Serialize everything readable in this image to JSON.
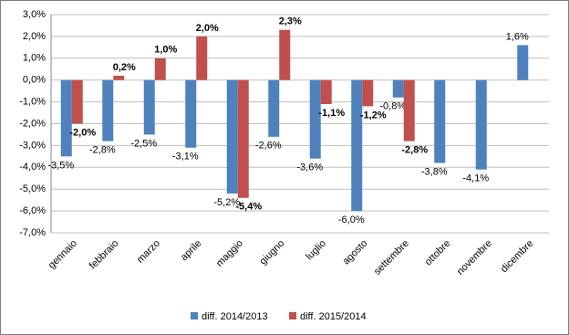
{
  "chart_data": {
    "type": "bar",
    "categories": [
      "gennaio",
      "febbraio",
      "marzo",
      "aprile",
      "maggio",
      "giugno",
      "luglio",
      "agosto",
      "settembre",
      "ottobre",
      "novembre",
      "dicembre"
    ],
    "series": [
      {
        "name": "diff. 2014/2013",
        "color": "#4f81bd",
        "values": [
          -3.5,
          -2.8,
          -2.5,
          -3.1,
          -5.2,
          -2.6,
          -3.6,
          -6.0,
          -0.8,
          -3.8,
          -4.1,
          1.6
        ],
        "value_labels": [
          "-3,5%",
          "-2,8%",
          "-2,5%",
          "-3,1%",
          "-5,2%",
          "-2,6%",
          "-3,6%",
          "-6,0%",
          "-0,8%",
          "-3,8%",
          "-4,1%",
          "1,6%"
        ]
      },
      {
        "name": "diff. 2015/2014",
        "color": "#c0504d",
        "values": [
          -2.0,
          0.2,
          1.0,
          2.0,
          -5.4,
          2.3,
          -1.1,
          -1.2,
          -2.8,
          null,
          null,
          null
        ],
        "value_labels": [
          "-2,0%",
          "0,2%",
          "1,0%",
          "2,0%",
          "-5,4%",
          "2,3%",
          "-1,1%",
          "-1,2%",
          "-2,8%",
          null,
          null,
          null
        ]
      }
    ],
    "ylim": [
      -7,
      3
    ],
    "yticks": [
      {
        "value": -7,
        "label": "-7,0%"
      },
      {
        "value": -6,
        "label": "-6,0%"
      },
      {
        "value": -5,
        "label": "-5,0%"
      },
      {
        "value": -4,
        "label": "-4,0%"
      },
      {
        "value": -3,
        "label": "-3,0%"
      },
      {
        "value": -2,
        "label": "-2,0%"
      },
      {
        "value": -1,
        "label": "-1,0%"
      },
      {
        "value": 0,
        "label": "0,0%"
      },
      {
        "value": 1,
        "label": "1,0%"
      },
      {
        "value": 2,
        "label": "2,0%"
      },
      {
        "value": 3,
        "label": "3,0%"
      }
    ],
    "grid": true,
    "legend": "bottom"
  }
}
